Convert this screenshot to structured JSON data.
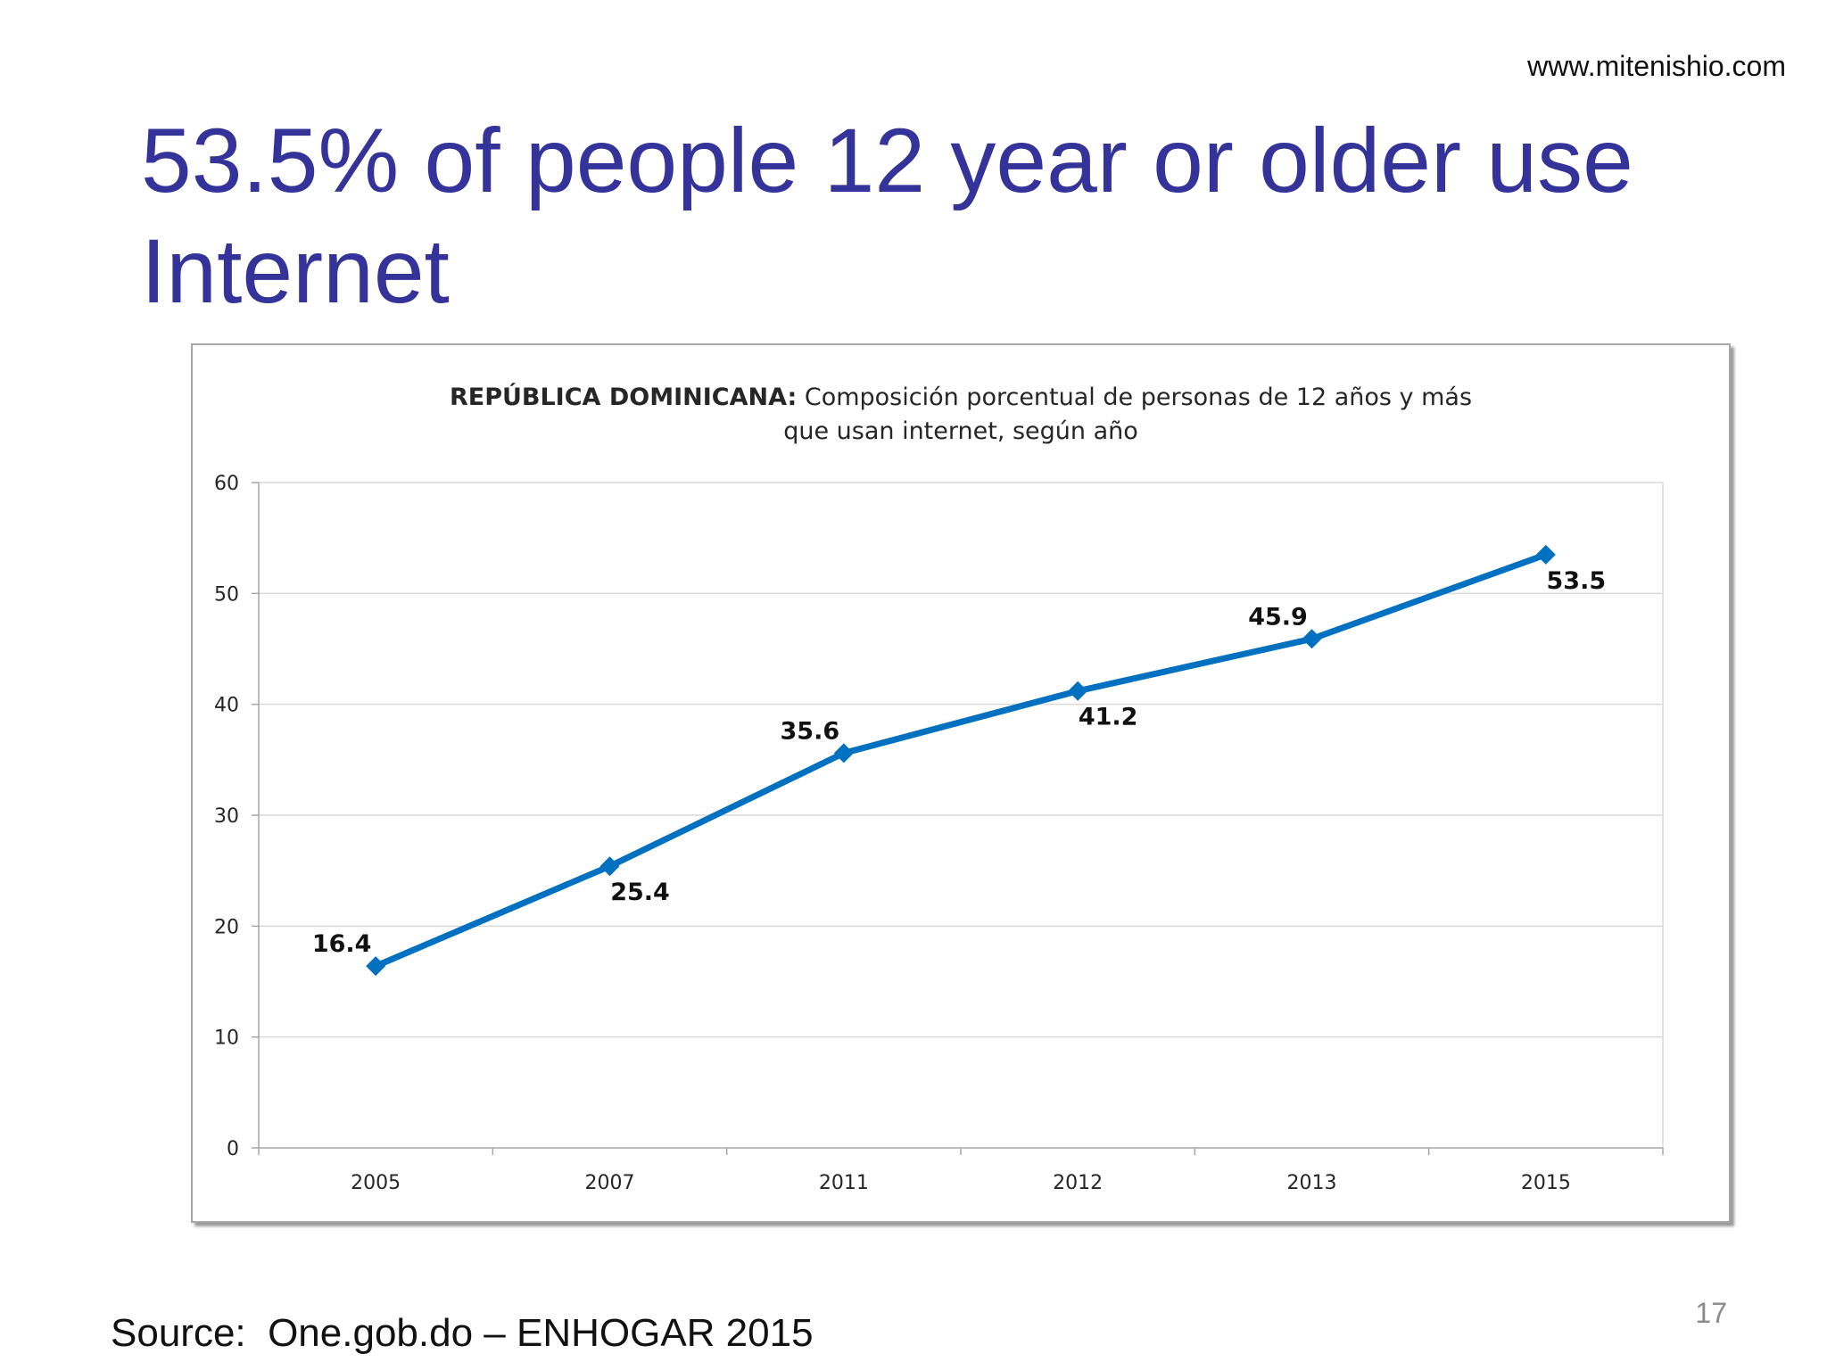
{
  "site_url": "www.mitenishio.com",
  "slide": {
    "title": "53.5% of people 12 year or older use Internet",
    "source": "Source:  One.gob.do – ENHOGAR 2015",
    "page_number": "17"
  },
  "colors": {
    "title": "#333399",
    "series": "#0070C0",
    "grid": "#d9d9d9"
  },
  "chart_data": {
    "type": "line",
    "title_bold": "REPÚBLICA DOMINICANA:",
    "title_rest": " Composición porcentual de personas de 12 años y más",
    "title_line2": "que usan internet, según año",
    "categories": [
      "2005",
      "2007",
      "2011",
      "2012",
      "2013",
      "2015"
    ],
    "series": [
      {
        "values": [
          16.4,
          25.4,
          35.6,
          41.2,
          45.9,
          53.5
        ],
        "data_labels": [
          "16.4",
          "25.4",
          "35.6",
          "41.2",
          "45.9",
          "53.5"
        ],
        "label_positions": [
          "above-left",
          "below-right",
          "above-left",
          "below-right",
          "above-left",
          "below-right"
        ]
      }
    ],
    "ylim": [
      0,
      60
    ],
    "yticks": [
      0,
      10,
      20,
      30,
      40,
      50,
      60
    ],
    "ytick_labels": [
      "0",
      "10",
      "20",
      "30",
      "40",
      "50",
      "60"
    ],
    "grid": true,
    "legend": "none",
    "marker": "diamond"
  }
}
